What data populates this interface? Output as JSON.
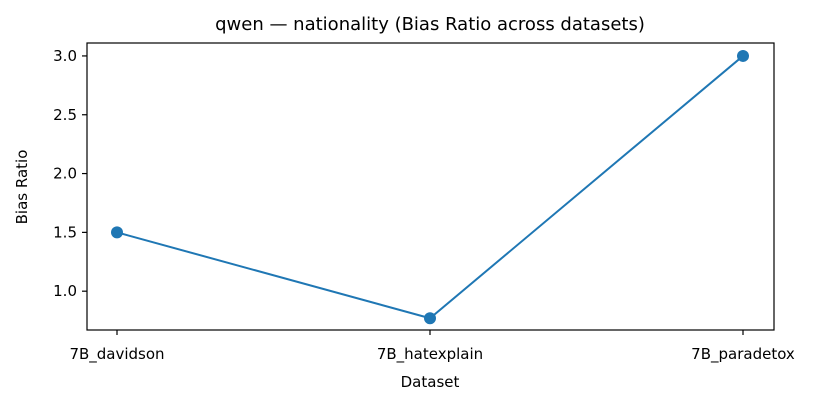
{
  "chart_data": {
    "type": "line",
    "title": "qwen — nationality (Bias Ratio across datasets)",
    "xlabel": "Dataset",
    "ylabel": "Bias Ratio",
    "categories": [
      "7B_davidson",
      "7B_hatexplain",
      "7B_paradetox"
    ],
    "series": [
      {
        "values": [
          1.5,
          0.77,
          3.0
        ],
        "color": "#1f77b4",
        "marker": "circle"
      }
    ],
    "ylim": [
      0.67,
      3.11
    ],
    "yticks": [
      1.0,
      1.5,
      2.0,
      2.5,
      3.0
    ],
    "ytick_labels": [
      "1.0",
      "1.5",
      "2.0",
      "2.5",
      "3.0"
    ],
    "grid": false
  }
}
